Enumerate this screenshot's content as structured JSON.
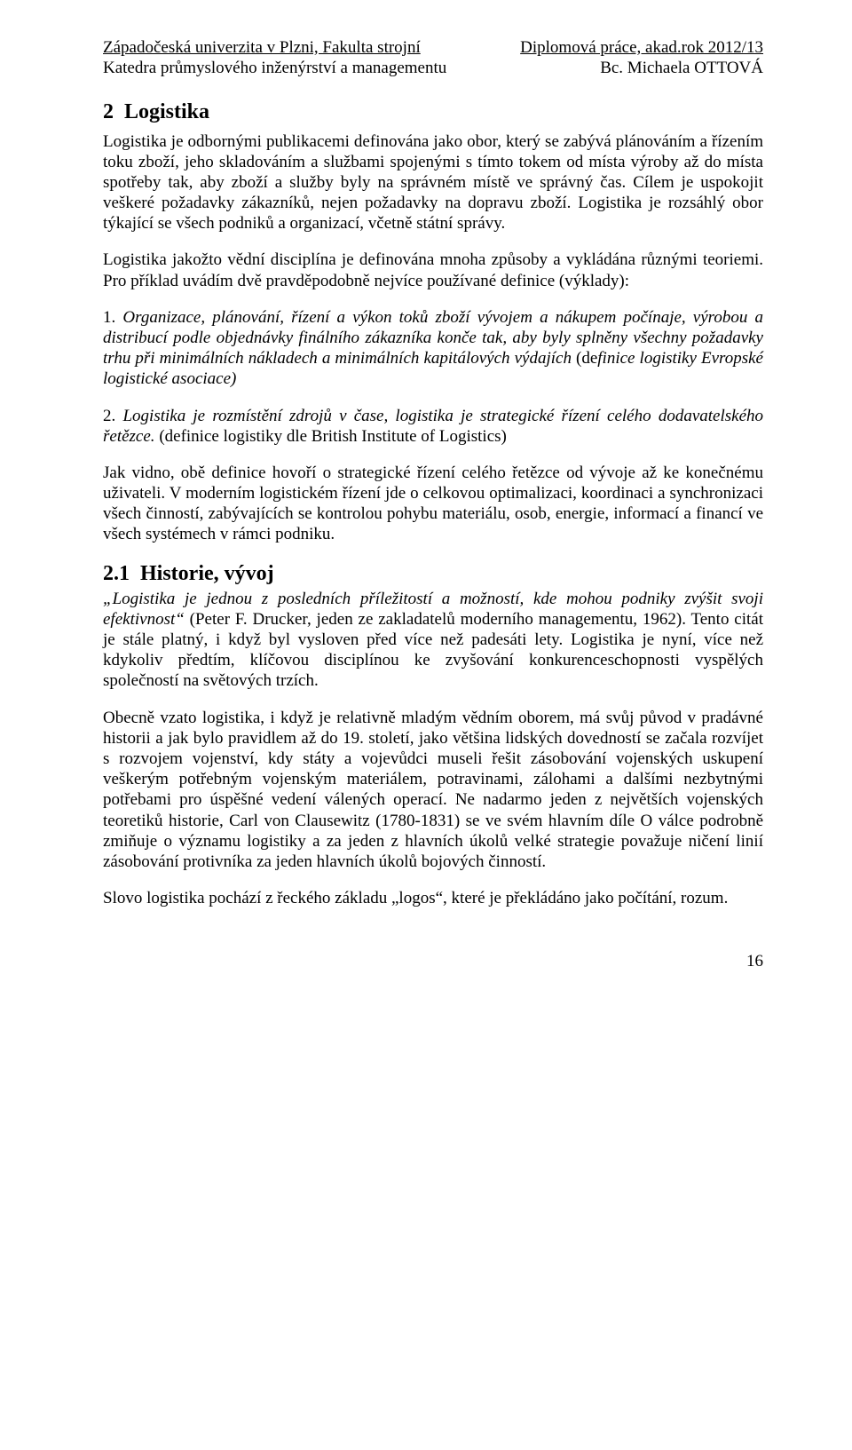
{
  "header": {
    "left1": "Západočeská univerzita v Plzni, Fakulta strojní",
    "right1": "Diplomová  práce, akad.rok 2012/13",
    "left2": "Katedra průmyslového inženýrství a managementu",
    "right2": "Bc. Michaela OTTOVÁ"
  },
  "section": {
    "num": "2",
    "title": "Logistika"
  },
  "para1": "Logistika je odbornými publikacemi definována jako obor, který se zabývá plánováním a řízením toku zboží, jeho skladováním a službami spojenými s tímto tokem od místa výroby až do místa spotřeby tak, aby zboží a služby byly na správném místě ve správný čas. Cílem je uspokojit veškeré požadavky zákazníků, nejen požadavky na dopravu zboží. Logistika je rozsáhlý obor týkající se všech podniků a organizací, včetně státní správy.",
  "para2": "Logistika jakožto vědní disciplína je definována mnoha způsoby a vykládána různými teoriemi. Pro příklad uvádím dvě pravděpodobně nejvíce používané definice (výklady):",
  "def1": {
    "num": "1. ",
    "italic": "Organizace, plánování, řízení a výkon toků zboží vývojem a nákupem počínaje, výrobou a distribucí podle objednávky finálního zákazníka konče tak, aby byly splněny všechny požadavky trhu při minimálních nákladech a minimálních kapitálových výdajích",
    "tail_open": " (de",
    "tail_italic": "finice logistiky Evropské logistické asociace)"
  },
  "def2": {
    "lead": "2. ",
    "italic": "Logistika je rozmístění zdrojů v čase, logistika je strategické řízení celého dodavatelského řetězce.",
    "tail": " (definice logistiky dle British Institute of Logistics)"
  },
  "para3": "Jak vidno, obě definice hovoří o strategické řízení celého řetězce od vývoje až ke konečnému uživateli. V moderním logistickém řízení jde o celkovou optimalizaci, koordinaci a synchronizaci všech činností, zabývajících se kontrolou pohybu materiálu, osob, energie, informací a financí ve všech systémech v rámci podniku.",
  "subsection": {
    "num": "2.1",
    "title": "Historie, vývoj"
  },
  "para4_quote": "„Logistika je jednou z posledních příležitostí a možností, kde mohou podniky zvýšit svoji efektivnost“",
  "para4_rest": " (Peter F. Drucker, jeden ze zakladatelů moderního managementu, 1962). Tento citát je stále platný, i když byl vysloven před více než padesáti lety. Logistika je nyní, více než kdykoliv předtím, klíčovou disciplínou ke zvyšování konkurenceschopnosti vyspělých společností na světových trzích.",
  "para5": "Obecně vzato logistika, i když je relativně mladým vědním oborem, má svůj původ v pradávné historii a jak bylo pravidlem až do 19. století, jako většina lidských dovedností se začala rozvíjet s rozvojem vojenství, kdy státy a vojevůdci museli řešit zásobování vojenských uskupení veškerým potřebným vojenským materiálem, potravinami, zálohami a dalšími nezbytnými potřebami pro úspěšné vedení válených operací. Ne nadarmo jeden z největších vojenských teoretiků historie, Carl von Clausewitz (1780-1831) se ve svém hlavním díle O válce podrobně zmiňuje o významu logistiky a za jeden z hlavních úkolů velké strategie považuje ničení linií zásobování protivníka za jeden hlavních úkolů bojových činností.",
  "para6": "Slovo logistika pochází z řeckého základu „logos“, které je překládáno jako počítání, rozum.",
  "pagenum": "16"
}
